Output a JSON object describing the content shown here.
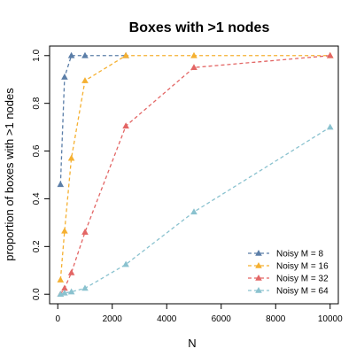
{
  "chart_data": {
    "type": "line",
    "title": "Boxes with >1 nodes",
    "xlabel": "N",
    "ylabel": "proportion of boxes with >1 nodes",
    "xlim": [
      -300,
      10300
    ],
    "ylim": [
      -0.04,
      1.04
    ],
    "xticks": [
      0,
      2000,
      4000,
      6000,
      8000,
      10000
    ],
    "yticks": [
      0.0,
      0.2,
      0.4,
      0.6,
      0.8,
      1.0
    ],
    "xtick_labels": [
      "0",
      "2000",
      "4000",
      "6000",
      "8000",
      "10000"
    ],
    "ytick_labels": [
      "0.0",
      "0.2",
      "0.4",
      "0.6",
      "0.8",
      "1.0"
    ],
    "grid": false,
    "legend_position": "bottom-right",
    "x": [
      100,
      250,
      500,
      1000,
      2500,
      5000,
      10000
    ],
    "series": [
      {
        "name": "Noisy M = 8",
        "color": "#5b7ea8",
        "x": [
          100,
          250,
          500,
          1000,
          2500
        ],
        "values": [
          0.46,
          0.91,
          1.0,
          1.0,
          1.0
        ]
      },
      {
        "name": "Noisy M = 16",
        "color": "#f5b031",
        "x": [
          100,
          250,
          500,
          1000,
          2500,
          5000,
          10000
        ],
        "values": [
          0.06,
          0.265,
          0.57,
          0.895,
          1.0,
          1.0,
          1.0
        ]
      },
      {
        "name": "Noisy M = 32",
        "color": "#e36665",
        "x": [
          100,
          250,
          500,
          1000,
          2500,
          5000,
          10000
        ],
        "values": [
          0.0,
          0.025,
          0.09,
          0.26,
          0.705,
          0.95,
          1.0
        ]
      },
      {
        "name": "Noisy M = 64",
        "color": "#8ac2cf",
        "x": [
          100,
          250,
          500,
          1000,
          2500,
          5000,
          10000
        ],
        "values": [
          0.0,
          0.005,
          0.01,
          0.025,
          0.125,
          0.345,
          0.7
        ]
      }
    ]
  }
}
